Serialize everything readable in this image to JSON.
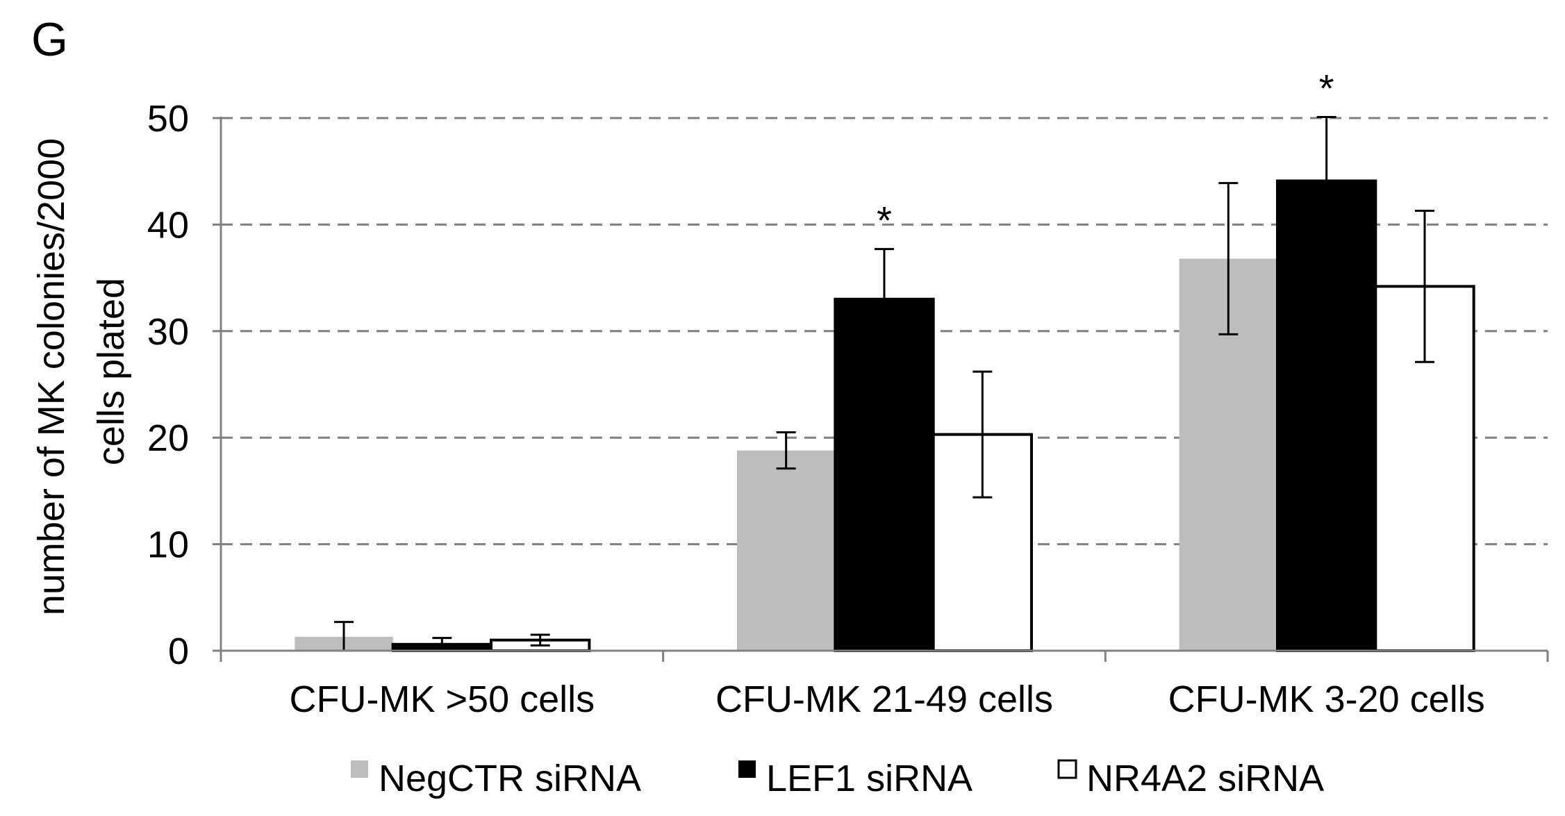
{
  "panel_label": "G",
  "chart_data": {
    "type": "bar",
    "title": "",
    "ylabel": "number of MK colonies/2000 cells plated",
    "ylabel_lines": [
      "number of MK colonies/2000",
      "cells plated"
    ],
    "ylim": [
      0,
      50
    ],
    "yticks": [
      0,
      10,
      20,
      30,
      40,
      50
    ],
    "grid": true,
    "legend_position": "bottom",
    "categories": [
      "CFU-MK >50 cells",
      "CFU-MK 21-49 cells",
      "CFU-MK 3-20 cells"
    ],
    "series": [
      {
        "name": "NegCTR siRNA",
        "color": "#bdbdbd",
        "values": [
          1.3,
          18.8,
          36.8
        ],
        "errors": [
          1.4,
          1.7,
          7.1
        ]
      },
      {
        "name": "LEF1 siRNA",
        "color": "#000000",
        "values": [
          0.6,
          33.0,
          44.1
        ],
        "errors": [
          0.6,
          4.7,
          6.0
        ]
      },
      {
        "name": "NR4A2 siRNA",
        "color": "#ffffff",
        "values": [
          1.0,
          20.3,
          34.2
        ],
        "errors": [
          0.5,
          5.9,
          7.1
        ]
      }
    ],
    "annotations": [
      {
        "text": "*",
        "category_index": 1,
        "series_index": 1
      },
      {
        "text": "*",
        "category_index": 2,
        "series_index": 1
      }
    ]
  }
}
